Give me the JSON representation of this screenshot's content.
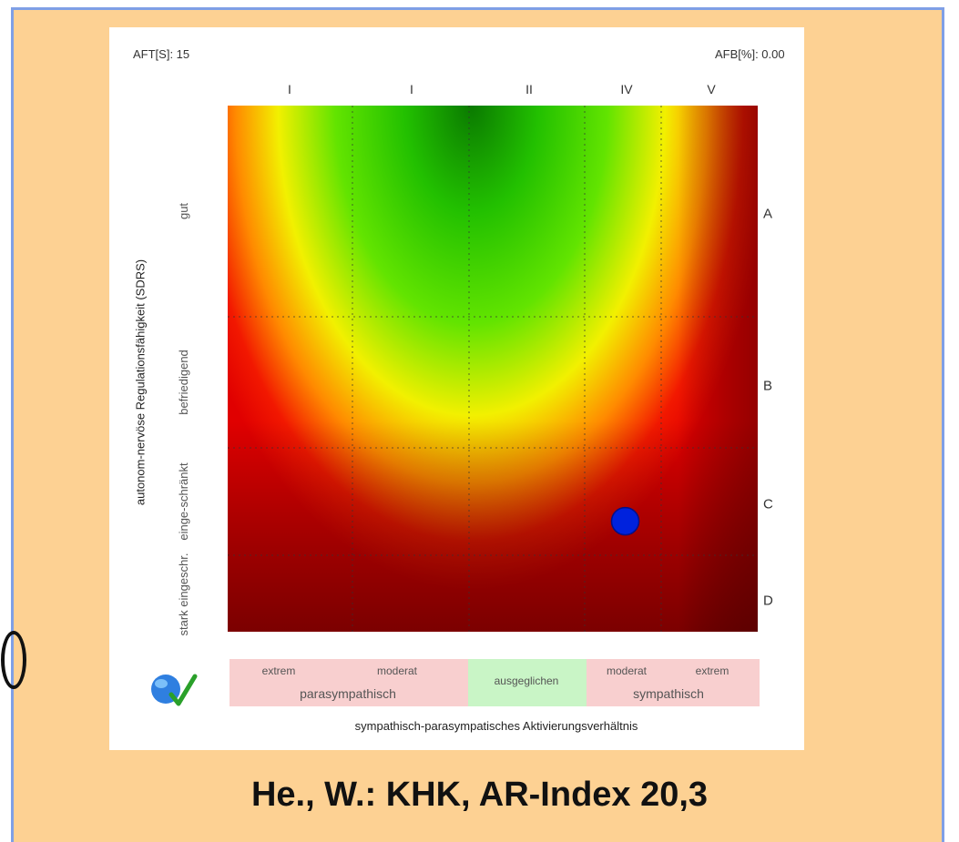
{
  "header": {
    "left_text": "AFT[S]: 15",
    "right_text": "AFB[%]: 0.00"
  },
  "caption": "He., W.: KHK, AR-Index 20,3",
  "logo_icon": "check-globe-icon",
  "chart_data": {
    "type": "heatmap",
    "columns": [
      "I",
      "I",
      "II",
      "IV",
      "V"
    ],
    "rows": [
      "A",
      "B",
      "C",
      "D"
    ],
    "ylabel": "autonom-nervöse Regulationsfähigkeit (SDRS)",
    "xlabel": "sympathisch-parasympatisches Aktivierungsverhältnis",
    "y_categories": [
      {
        "label": "gut",
        "color": "#c9f5c6"
      },
      {
        "label": "befriedigend",
        "color": "#fdfadc"
      },
      {
        "label": "einge-schränkt",
        "color": "#f8cfcf"
      },
      {
        "label": "stark eingeschr.",
        "color": "#f8cfcf"
      }
    ],
    "x_categories": [
      {
        "label": "extrem",
        "group": "parasympathisch",
        "color": "#f8cfcf"
      },
      {
        "label": "moderat",
        "group": "parasympathisch",
        "color": "#f8cfcf"
      },
      {
        "label": "ausgeglichen",
        "group": "",
        "color": "#c9f5c6"
      },
      {
        "label": "moderat",
        "group": "sympathisch",
        "color": "#f8cfcf"
      },
      {
        "label": "extrem",
        "group": "sympathisch",
        "color": "#f8cfcf"
      }
    ],
    "x_group_labels": [
      "parasympathisch",
      "sympathisch"
    ],
    "point": {
      "x": 0.75,
      "y": 0.79,
      "color": "#0022dd"
    },
    "grid": "dotted"
  }
}
